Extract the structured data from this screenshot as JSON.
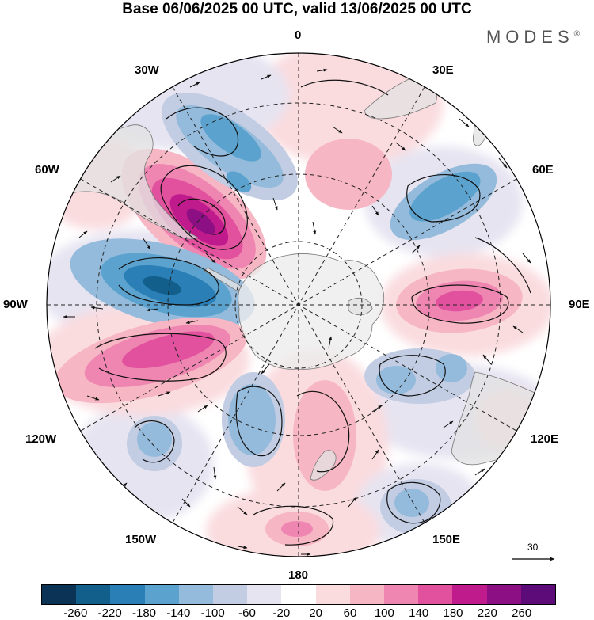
{
  "title": "Base 06/06/2025 00 UTC, valid 13/06/2025 00 UTC",
  "brand": "MODES",
  "brand_mark": "®",
  "longitude_labels": {
    "lon_0": "0",
    "lon_30e": "30E",
    "lon_60e": "60E",
    "lon_90e": "90E",
    "lon_120e": "120E",
    "lon_150e": "150E",
    "lon_180": "180",
    "lon_150w": "150W",
    "lon_120w": "120W",
    "lon_90w": "90W",
    "lon_60w": "60W",
    "lon_30w": "30W"
  },
  "reference_vector_label": "30",
  "colorbar": {
    "colors": [
      "#0a3355",
      "#135f8c",
      "#2a7fb6",
      "#5ba3ce",
      "#94bbdc",
      "#c2cce2",
      "#e6e4f1",
      "#ffffff",
      "#fadcdf",
      "#f7b6c4",
      "#ef86b2",
      "#e2519e",
      "#c01b8c",
      "#8d0f84",
      "#5c0b78"
    ],
    "ticks": [
      "-260",
      "-220",
      "-180",
      "-140",
      "-100",
      "-60",
      "-20",
      "20",
      "60",
      "100",
      "140",
      "180",
      "220",
      "260"
    ]
  },
  "palette": {
    "antarctica": "#ececec",
    "land": "#e2e2e2",
    "grid": "#222222"
  }
}
